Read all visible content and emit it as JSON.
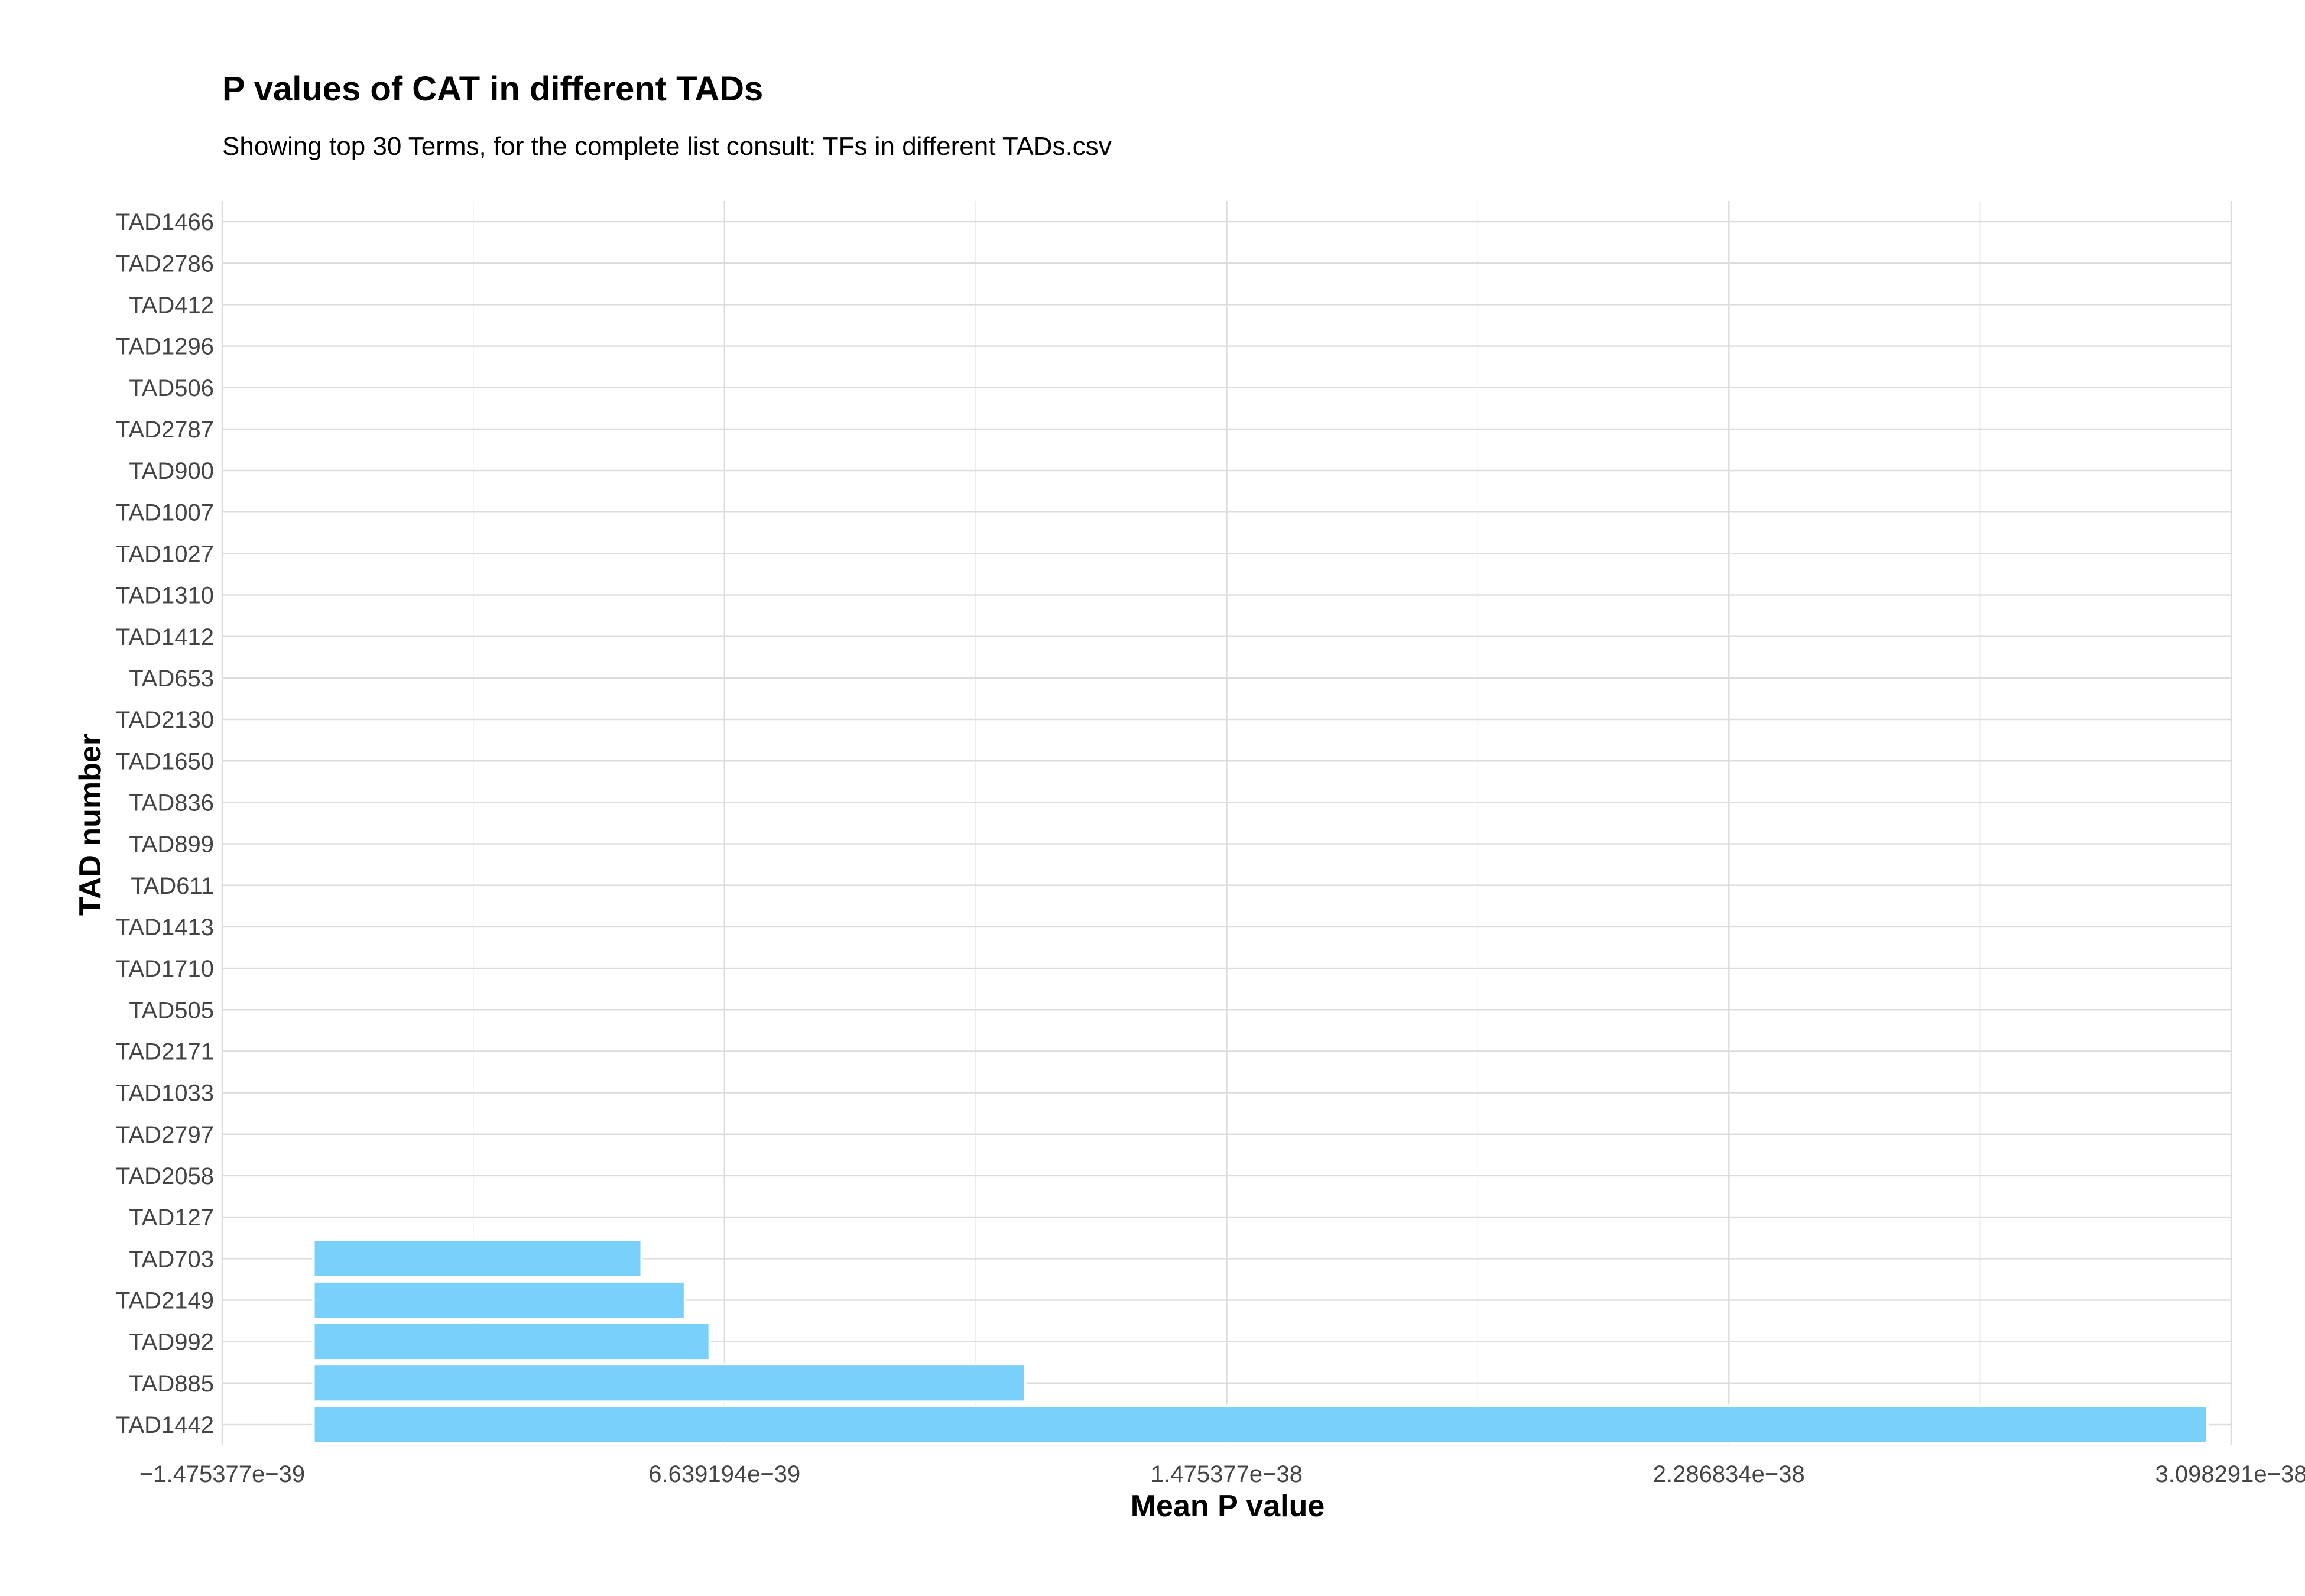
{
  "chart_data": {
    "type": "bar",
    "orientation": "horizontal",
    "title": "P values of CAT in different TADs",
    "subtitle": "Showing top 30 Terms, for the complete list consult: TFs in different TADs.csv",
    "xlabel": "Mean P value",
    "ylabel": "TAD number",
    "categories": [
      "TAD1466",
      "TAD2786",
      "TAD412",
      "TAD1296",
      "TAD506",
      "TAD2787",
      "TAD900",
      "TAD1007",
      "TAD1027",
      "TAD1310",
      "TAD1412",
      "TAD653",
      "TAD2130",
      "TAD1650",
      "TAD836",
      "TAD899",
      "TAD611",
      "TAD1413",
      "TAD1710",
      "TAD505",
      "TAD2171",
      "TAD1033",
      "TAD2797",
      "TAD2058",
      "TAD127",
      "TAD703",
      "TAD2149",
      "TAD992",
      "TAD885",
      "TAD1442"
    ],
    "values": [
      0,
      0,
      0,
      0,
      0,
      0,
      0,
      0,
      0,
      0,
      0,
      0,
      0,
      0,
      0,
      0,
      0,
      0,
      0,
      0,
      0,
      0,
      0,
      0,
      0,
      5.3e-39,
      6e-39,
      6.4e-39,
      1.15e-38,
      3.06e-38
    ],
    "xticks": [
      -1.475377e-39,
      6.639194e-39,
      1.475377e-38,
      2.286834e-38,
      3.098291e-38
    ],
    "xtick_labels": [
      "−1.475377e−39",
      "6.639194e−39",
      "1.475377e−38",
      "2.286834e−38",
      "3.098291e−38"
    ],
    "xlim": [
      -1.475377e-39,
      3.098291e-38
    ],
    "bar_color": "#78D0FB",
    "bar_edge_color": "#ffffff",
    "grid": true,
    "legend": false
  }
}
